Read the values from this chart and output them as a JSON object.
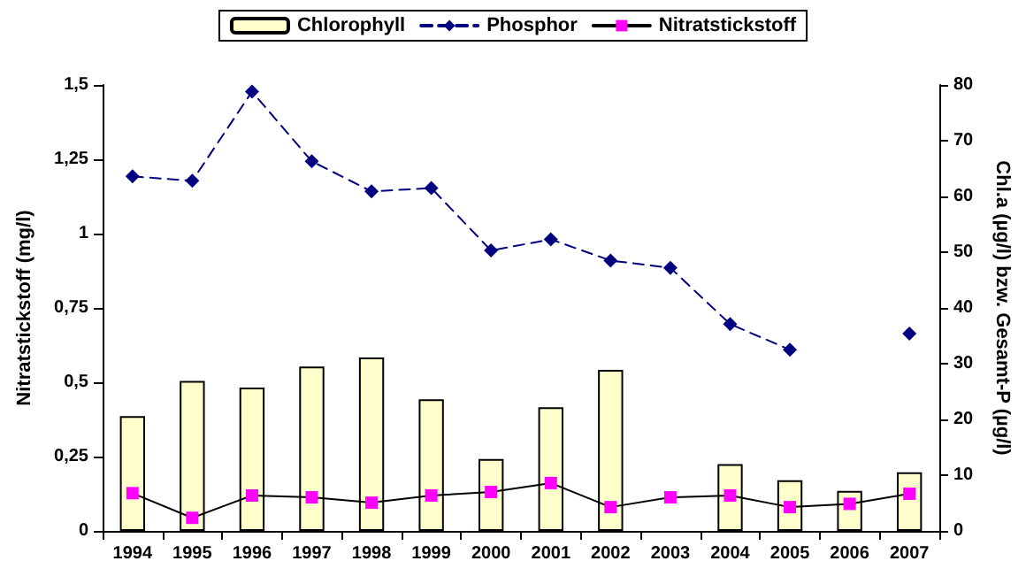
{
  "chart_data": {
    "type": "bar",
    "categories": [
      "1994",
      "1995",
      "1996",
      "1997",
      "1998",
      "1999",
      "2000",
      "2001",
      "2002",
      "2003",
      "2004",
      "2005",
      "2006",
      "2007"
    ],
    "ylabel": "Nitratstickstoff (mg/l)",
    "y2label": "Chl.a (µg/l) bzw. Gesamt-P (µg/l)",
    "ylim": [
      0,
      1.5
    ],
    "yticks": [
      0,
      {
        "value": 0.25,
        "label": "0,25"
      },
      {
        "value": 0.5,
        "label": "0,5"
      },
      {
        "value": 0.75,
        "label": "0,75"
      },
      1,
      {
        "value": 1.25,
        "label": "1,25"
      },
      {
        "value": 1.5,
        "label": "1,5"
      }
    ],
    "y2lim": [
      0,
      80
    ],
    "y2ticks": [
      0,
      10,
      20,
      30,
      40,
      50,
      60,
      70,
      80
    ],
    "grid": false,
    "legend": "top",
    "series": [
      {
        "name": "Chlorophyll",
        "axis": "y2",
        "color": "#ffffcc",
        "values": [
          20.6,
          26.9,
          25.7,
          29.5,
          31.1,
          23.6,
          12.9,
          22.2,
          28.9,
          null,
          12.0,
          9.1,
          7.2,
          10.5
        ]
      },
      {
        "name": "Phosphor",
        "type": "line",
        "axis": "y2",
        "color": "#000080",
        "marker": "diamond",
        "line_style": "dashed",
        "values": [
          63.6,
          62.8,
          78.8,
          66.3,
          60.9,
          61.5,
          50.3,
          52.3,
          48.5,
          47.2,
          37.1,
          32.5,
          null,
          35.4
        ]
      },
      {
        "name": "Nitratstickstoff",
        "type": "line",
        "color": "#ff00ff",
        "marker": "square",
        "line_style": "solid",
        "values": [
          0.127,
          0.044,
          0.119,
          0.113,
          0.095,
          0.119,
          0.131,
          0.161,
          0.08,
          0.113,
          0.119,
          0.08,
          0.091,
          0.125
        ]
      }
    ]
  }
}
